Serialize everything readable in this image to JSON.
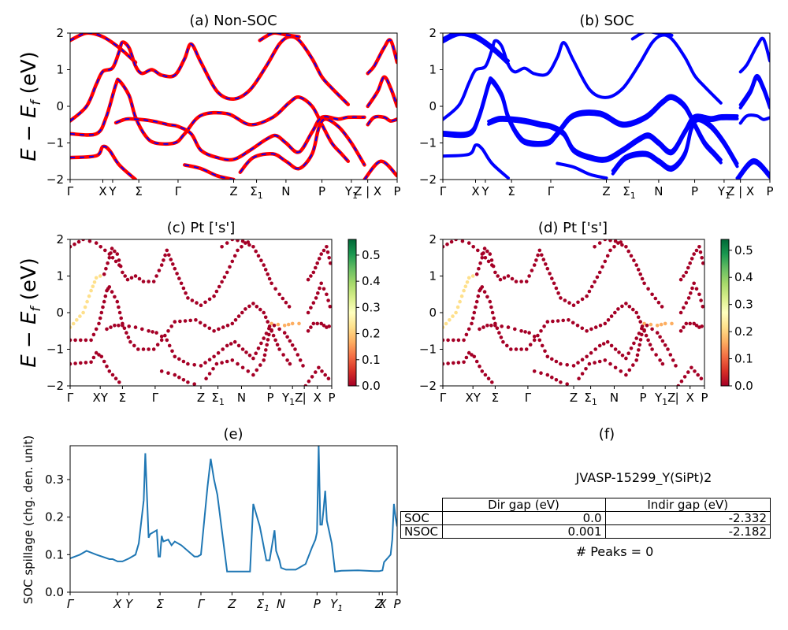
{
  "chart_data": [
    {
      "id": "a",
      "type": "line",
      "title": "(a) Non-SOC",
      "ylabel": "E − E_f (eV)",
      "ylim": [
        -2,
        2
      ],
      "yticks": [
        "2",
        "1",
        "0",
        "−1",
        "−2"
      ],
      "kpath_labels": [
        "Γ",
        "X",
        "Y",
        "Σ",
        "Γ",
        "Z",
        "Σ1",
        "N",
        "P",
        "Y1",
        "Z | X",
        "P"
      ],
      "kpath_positions": [
        0,
        0.1,
        0.13,
        0.21,
        0.33,
        0.5,
        0.57,
        0.66,
        0.77,
        0.86,
        0.91,
        1.0
      ],
      "colors": {
        "bands": "#ff0000",
        "overlay": "#0000ff"
      },
      "bands": [
        [
          [
            0,
            1.8
          ],
          [
            0.05,
            2.0
          ],
          [
            0.1,
            1.9
          ],
          [
            0.15,
            1.6
          ],
          [
            0.2,
            1.2
          ]
        ],
        [
          [
            0,
            -0.4
          ],
          [
            0.05,
            0.0
          ],
          [
            0.08,
            0.6
          ],
          [
            0.1,
            0.95
          ],
          [
            0.13,
            1.05
          ],
          [
            0.15,
            1.5
          ],
          [
            0.16,
            1.75
          ],
          [
            0.18,
            1.6
          ],
          [
            0.2,
            1.1
          ],
          [
            0.22,
            0.9
          ],
          [
            0.25,
            1.0
          ],
          [
            0.28,
            0.85
          ],
          [
            0.32,
            0.85
          ],
          [
            0.35,
            1.3
          ],
          [
            0.37,
            1.7
          ],
          [
            0.4,
            1.2
          ],
          [
            0.45,
            0.4
          ],
          [
            0.5,
            0.2
          ],
          [
            0.55,
            0.45
          ],
          [
            0.6,
            1.1
          ],
          [
            0.64,
            1.7
          ],
          [
            0.67,
            1.9
          ],
          [
            0.7,
            1.8
          ],
          [
            0.74,
            1.3
          ],
          [
            0.77,
            0.8
          ],
          [
            0.8,
            0.5
          ],
          [
            0.85,
            0.05
          ]
        ],
        [
          [
            0,
            -0.75
          ],
          [
            0.08,
            -0.75
          ],
          [
            0.11,
            -0.3
          ],
          [
            0.14,
            0.6
          ],
          [
            0.15,
            0.7
          ],
          [
            0.18,
            0.3
          ],
          [
            0.2,
            -0.3
          ],
          [
            0.23,
            -0.8
          ],
          [
            0.26,
            -1.0
          ],
          [
            0.32,
            -1.0
          ],
          [
            0.35,
            -0.75
          ],
          [
            0.4,
            -0.25
          ],
          [
            0.48,
            -0.2
          ],
          [
            0.55,
            -0.5
          ],
          [
            0.62,
            -0.3
          ],
          [
            0.67,
            0.1
          ],
          [
            0.7,
            0.25
          ],
          [
            0.74,
            0.0
          ],
          [
            0.77,
            -0.5
          ],
          [
            0.8,
            -1.0
          ],
          [
            0.83,
            -1.3
          ],
          [
            0.85,
            -1.5
          ]
        ],
        [
          [
            0,
            -1.4
          ],
          [
            0.08,
            -1.35
          ],
          [
            0.1,
            -1.1
          ],
          [
            0.12,
            -1.2
          ],
          [
            0.15,
            -1.6
          ],
          [
            0.2,
            -2.0
          ]
        ],
        [
          [
            0.14,
            -0.45
          ],
          [
            0.17,
            -0.35
          ],
          [
            0.2,
            -0.35
          ],
          [
            0.25,
            -0.4
          ],
          [
            0.3,
            -0.5
          ],
          [
            0.33,
            -0.55
          ],
          [
            0.37,
            -0.75
          ],
          [
            0.4,
            -1.2
          ],
          [
            0.45,
            -1.4
          ],
          [
            0.5,
            -1.45
          ],
          [
            0.55,
            -1.2
          ],
          [
            0.6,
            -0.9
          ],
          [
            0.63,
            -0.8
          ],
          [
            0.66,
            -1.0
          ],
          [
            0.7,
            -1.25
          ],
          [
            0.74,
            -0.7
          ],
          [
            0.77,
            -0.3
          ],
          [
            0.82,
            -0.35
          ],
          [
            0.85,
            -0.3
          ],
          [
            0.9,
            -0.3
          ]
        ],
        [
          [
            0.35,
            -1.6
          ],
          [
            0.4,
            -1.7
          ],
          [
            0.45,
            -1.9
          ],
          [
            0.5,
            -2.0
          ]
        ],
        [
          [
            0.52,
            -1.8
          ],
          [
            0.56,
            -1.4
          ],
          [
            0.62,
            -1.3
          ],
          [
            0.66,
            -1.5
          ],
          [
            0.7,
            -1.7
          ],
          [
            0.74,
            -1.3
          ],
          [
            0.76,
            -0.6
          ],
          [
            0.78,
            -0.35
          ],
          [
            0.82,
            -0.55
          ],
          [
            0.86,
            -1.0
          ],
          [
            0.9,
            -1.6
          ]
        ],
        [
          [
            0.58,
            1.8
          ],
          [
            0.62,
            2.0
          ],
          [
            0.66,
            1.95
          ],
          [
            0.7,
            1.9
          ]
        ],
        [
          [
            0.9,
            -2.0
          ],
          [
            0.95,
            -1.5
          ],
          [
            1.0,
            -1.9
          ]
        ],
        [
          [
            0.91,
            0.9
          ],
          [
            0.93,
            1.1
          ],
          [
            0.96,
            1.6
          ],
          [
            0.98,
            1.8
          ],
          [
            1.0,
            1.2
          ]
        ],
        [
          [
            0.91,
            0.0
          ],
          [
            0.94,
            0.4
          ],
          [
            0.96,
            0.8
          ],
          [
            0.98,
            0.5
          ],
          [
            1.0,
            0.0
          ]
        ],
        [
          [
            0.91,
            -0.5
          ],
          [
            0.93,
            -0.3
          ],
          [
            0.96,
            -0.3
          ],
          [
            0.98,
            -0.4
          ],
          [
            1.0,
            -0.35
          ]
        ]
      ]
    },
    {
      "id": "b",
      "type": "line",
      "title": "(b) SOC",
      "ylim": [
        -2,
        2
      ],
      "yticks": [
        "2",
        "1",
        "0",
        "−1",
        "−2"
      ],
      "kpath_labels": [
        "Γ",
        "X",
        "Y",
        "Σ",
        "Γ",
        "Z",
        "Σ1",
        "N",
        "P",
        "Y1",
        "Z | X",
        "P"
      ],
      "kpath_positions": [
        0,
        0.1,
        0.13,
        0.21,
        0.33,
        0.5,
        0.57,
        0.66,
        0.77,
        0.86,
        0.91,
        1.0
      ],
      "colors": {
        "bands": "#0000ff"
      },
      "bands": "same as (a), slightly split by spin-orbit coupling"
    },
    {
      "id": "c",
      "type": "scatter",
      "title": "(c)  Pt ['s']",
      "ylabel": "E − E_f (eV)",
      "ylim": [
        -2,
        2
      ],
      "yticks": [
        "2",
        "1",
        "0",
        "−1",
        "−2"
      ],
      "kpath_labels": [
        "Γ",
        "XY",
        "Σ",
        "Γ",
        "Z",
        "Σ1",
        "N",
        "P",
        "Y1Z",
        "|",
        "X",
        "P"
      ],
      "kpath_positions": [
        0,
        0.115,
        0.2,
        0.325,
        0.5,
        0.565,
        0.655,
        0.765,
        0.85,
        0.895,
        0.945,
        1.0
      ],
      "colorbar": {
        "min": 0.0,
        "max": 0.56,
        "ticks": [
          "0.5",
          "0.4",
          "0.3",
          "0.2",
          "0.1",
          "0.0"
        ],
        "colormap": "RdYlGn"
      }
    },
    {
      "id": "d",
      "type": "scatter",
      "title": "(d) Pt ['s']",
      "ylim": [
        -2,
        2
      ],
      "yticks": [
        "2",
        "1",
        "0",
        "−1",
        "−2"
      ],
      "kpath_labels": [
        "Γ",
        "XY",
        "Σ",
        "Γ",
        "Z",
        "Σ1",
        "N",
        "P",
        "Y1Z",
        "|",
        "X",
        "P"
      ],
      "kpath_positions": [
        0,
        0.115,
        0.2,
        0.325,
        0.5,
        0.565,
        0.655,
        0.765,
        0.85,
        0.895,
        0.945,
        1.0
      ],
      "colorbar": {
        "min": 0.0,
        "max": 0.54,
        "ticks": [
          "0.5",
          "0.4",
          "0.3",
          "0.2",
          "0.1",
          "0.0"
        ],
        "colormap": "RdYlGn"
      }
    },
    {
      "id": "e",
      "type": "line",
      "title": "(e)",
      "ylabel": "SOC spillage (chg. den. unit)",
      "ylim": [
        0,
        0.39
      ],
      "yticks": [
        "0.3",
        "0.2",
        "0.1",
        "0.0"
      ],
      "ytick_values": [
        0.3,
        0.2,
        0.1,
        0.0
      ],
      "xticks": [
        "Γ",
        "X",
        "Y",
        "Σ",
        "Γ",
        "Z",
        "Σ1",
        "N",
        "P",
        "Y1",
        "Z",
        "X",
        "P"
      ],
      "xtick_positions": [
        0,
        0.145,
        0.18,
        0.275,
        0.4,
        0.495,
        0.59,
        0.645,
        0.755,
        0.815,
        0.945,
        0.955,
        1.0
      ],
      "color": "#1f77b4",
      "x": [
        0,
        0.03,
        0.05,
        0.08,
        0.12,
        0.13,
        0.145,
        0.16,
        0.18,
        0.2,
        0.21,
        0.225,
        0.23,
        0.24,
        0.245,
        0.265,
        0.27,
        0.275,
        0.28,
        0.285,
        0.3,
        0.31,
        0.32,
        0.34,
        0.38,
        0.39,
        0.4,
        0.42,
        0.43,
        0.44,
        0.45,
        0.48,
        0.49,
        0.5,
        0.52,
        0.55,
        0.56,
        0.58,
        0.59,
        0.6,
        0.61,
        0.625,
        0.63,
        0.64,
        0.645,
        0.66,
        0.69,
        0.7,
        0.72,
        0.74,
        0.75,
        0.755,
        0.76,
        0.765,
        0.77,
        0.775,
        0.78,
        0.785,
        0.79,
        0.8,
        0.81,
        0.83,
        0.88,
        0.93,
        0.945,
        0.955,
        0.96,
        0.97,
        0.98,
        0.985,
        0.99,
        0.995,
        1.0
      ],
      "y": [
        0.09,
        0.1,
        0.11,
        0.1,
        0.088,
        0.088,
        0.082,
        0.082,
        0.09,
        0.1,
        0.13,
        0.245,
        0.37,
        0.145,
        0.155,
        0.165,
        0.095,
        0.095,
        0.15,
        0.135,
        0.14,
        0.125,
        0.135,
        0.125,
        0.095,
        0.095,
        0.1,
        0.28,
        0.355,
        0.3,
        0.26,
        0.055,
        0.055,
        0.055,
        0.055,
        0.055,
        0.235,
        0.175,
        0.13,
        0.085,
        0.085,
        0.165,
        0.11,
        0.085,
        0.065,
        0.06,
        0.06,
        0.065,
        0.075,
        0.12,
        0.14,
        0.16,
        0.39,
        0.18,
        0.18,
        0.22,
        0.27,
        0.19,
        0.17,
        0.13,
        0.055,
        0.057,
        0.058,
        0.056,
        0.056,
        0.058,
        0.08,
        0.09,
        0.1,
        0.14,
        0.235,
        0.2,
        0.175
      ]
    },
    {
      "id": "f",
      "type": "table",
      "title": "(f)",
      "subtitle": "JVASP-15299_Y(SiPt)2",
      "columns": [
        "",
        "Dir gap (eV)",
        "Indir gap (eV)"
      ],
      "rows": [
        [
          "SOC",
          "0.0",
          "-2.332"
        ],
        [
          "NSOC",
          "0.001",
          "-2.182"
        ]
      ],
      "footer": "# Peaks = 0"
    }
  ]
}
